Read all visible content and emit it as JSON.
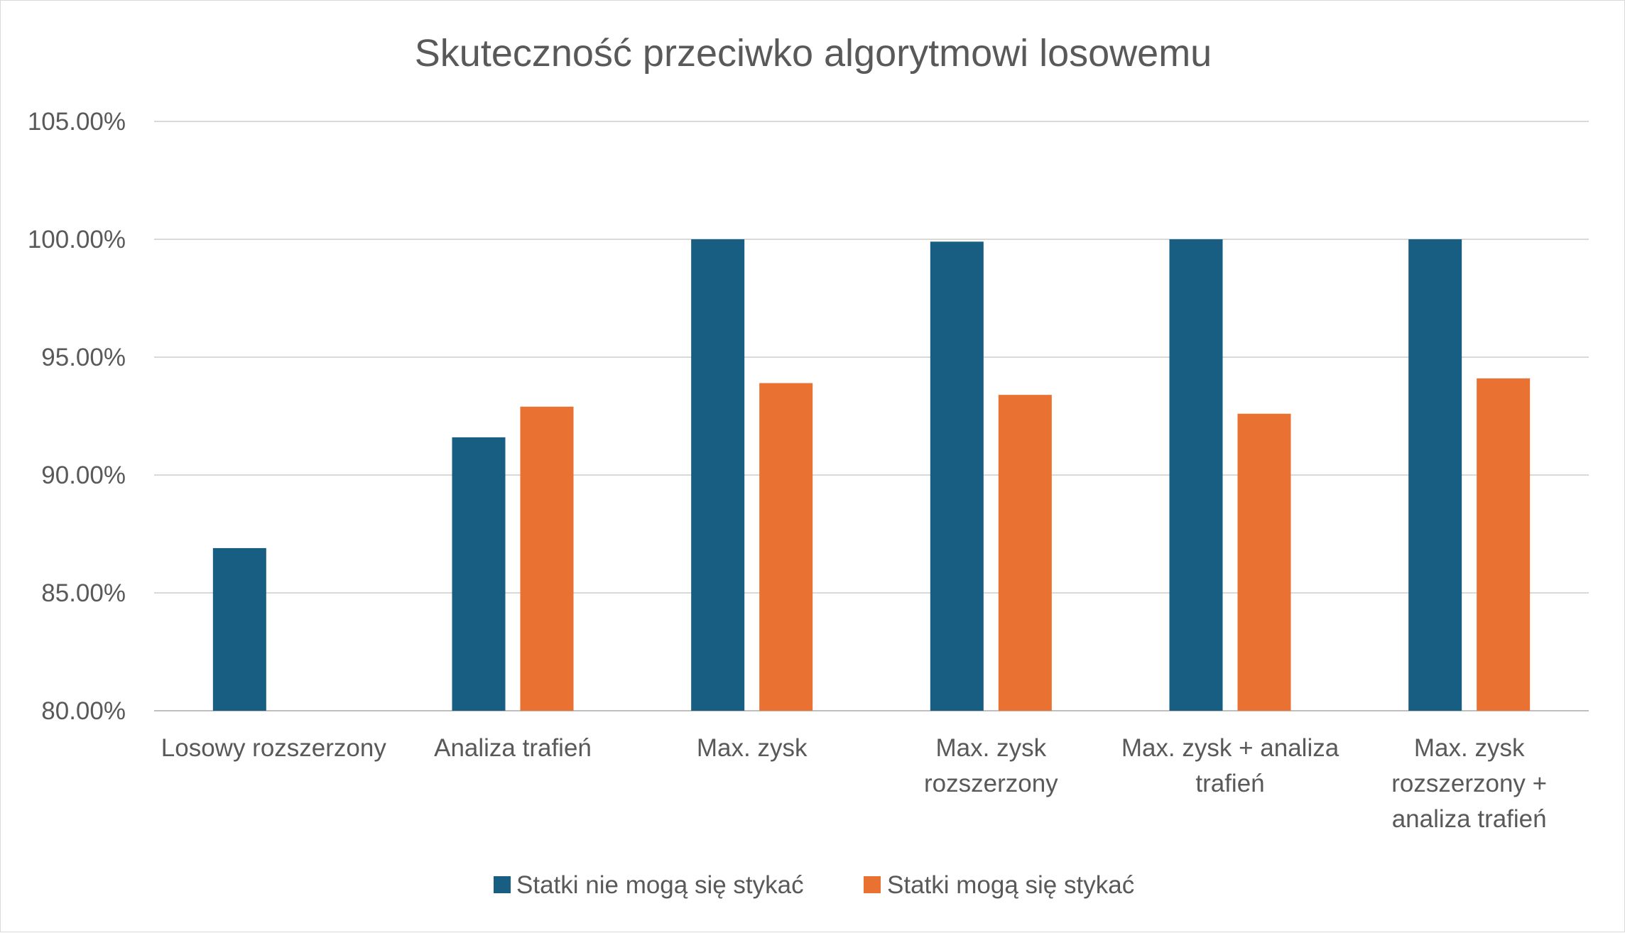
{
  "chart_data": {
    "type": "bar",
    "title": "Skuteczność przeciwko algorytmowi losowemu",
    "categories": [
      [
        "Losowy rozszerzony"
      ],
      [
        "Analiza trafień"
      ],
      [
        "Max. zysk"
      ],
      [
        "Max. zysk",
        "rozszerzony"
      ],
      [
        "Max. zysk + analiza",
        "trafień"
      ],
      [
        "Max. zysk",
        "rozszerzony +",
        "analiza trafień"
      ]
    ],
    "series": [
      {
        "name": "Statki nie mogą się stykać",
        "color": "#175E82",
        "values": [
          86.9,
          91.6,
          100.0,
          99.9,
          100.0,
          100.0
        ]
      },
      {
        "name": "Statki mogą się stykać",
        "color": "#E97132",
        "values": [
          null,
          92.9,
          93.9,
          93.4,
          92.6,
          94.1
        ]
      }
    ],
    "ylim": [
      80,
      105
    ],
    "yticks": [
      "80.00%",
      "85.00%",
      "90.00%",
      "95.00%",
      "100.00%",
      "105.00%"
    ],
    "ytick_values": [
      80,
      85,
      90,
      95,
      100,
      105
    ],
    "grid": true,
    "legend": "bottom"
  }
}
